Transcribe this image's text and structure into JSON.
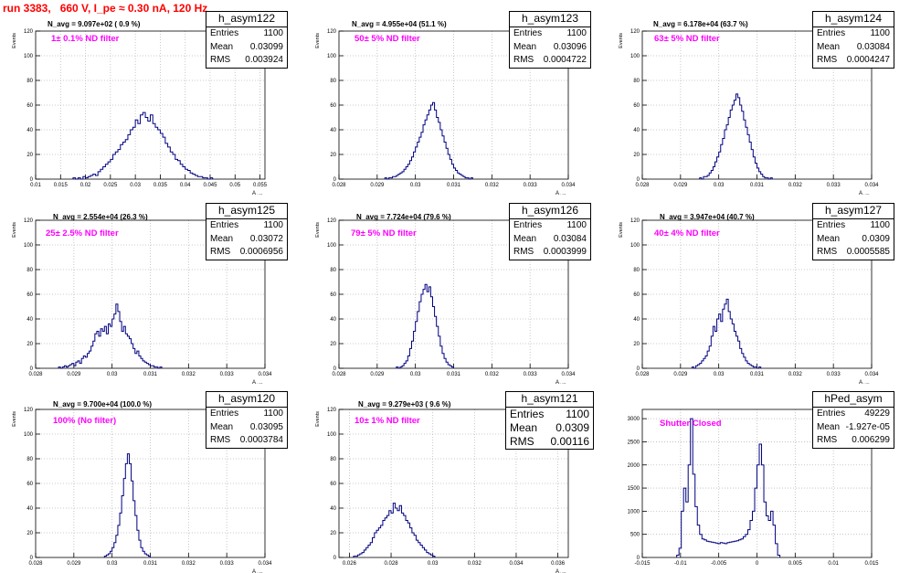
{
  "title": "run 3383,   660 V, I_pe ≈ 0.30 nA, 120 Hz",
  "colors": {
    "title": "#ff0000",
    "histogram": "#000080",
    "label": "#ff00ff",
    "grid": "#bbbbbb"
  },
  "panels": [
    {
      "name": "h_asym122",
      "navg": "N_avg = 9.097e+02 ( 0.9 %)",
      "filter": "1± 0.1% ND filter",
      "stats": {
        "entries_label": "Entries",
        "entries": "1100",
        "mean_label": "Mean",
        "mean": "0.03099",
        "rms_label": "RMS",
        "rms": "0.003924"
      }
    },
    {
      "name": "h_asym123",
      "navg": "N_avg = 4.955e+04 (51.1 %)",
      "filter": "50± 5% ND filter",
      "stats": {
        "entries_label": "Entries",
        "entries": "1100",
        "mean_label": "Mean",
        "mean": "0.03096",
        "rms_label": "RMS",
        "rms": "0.0004722"
      }
    },
    {
      "name": "h_asym124",
      "navg": "N_avg = 6.178e+04 (63.7 %)",
      "filter": "63± 5% ND filter",
      "stats": {
        "entries_label": "Entries",
        "entries": "1100",
        "mean_label": "Mean",
        "mean": "0.03084",
        "rms_label": "RMS",
        "rms": "0.0004247"
      }
    },
    {
      "name": "h_asym125",
      "navg": "N_avg = 2.554e+04 (26.3 %)",
      "filter": "25± 2.5% ND filter",
      "stats": {
        "entries_label": "Entries",
        "entries": "1100",
        "mean_label": "Mean",
        "mean": "0.03072",
        "rms_label": "RMS",
        "rms": "0.0006956"
      }
    },
    {
      "name": "h_asym126",
      "navg": "N_avg = 7.724e+04 (79.6 %)",
      "filter": "79± 5% ND filter",
      "stats": {
        "entries_label": "Entries",
        "entries": "1100",
        "mean_label": "Mean",
        "mean": "0.03084",
        "rms_label": "RMS",
        "rms": "0.0003999"
      }
    },
    {
      "name": "h_asym127",
      "navg": "N_avg = 3.947e+04 (40.7 %)",
      "filter": "40± 4% ND filter",
      "stats": {
        "entries_label": "Entries",
        "entries": "1100",
        "mean_label": "Mean",
        "mean": "0.0309",
        "rms_label": "RMS",
        "rms": "0.0005585"
      }
    },
    {
      "name": "h_asym120",
      "navg": "N_avg = 9.700e+04 (100.0 %)",
      "filter": "100% (No filter)",
      "stats": {
        "entries_label": "Entries",
        "entries": "1100",
        "mean_label": "Mean",
        "mean": "0.03095",
        "rms_label": "RMS",
        "rms": "0.0003784"
      }
    },
    {
      "name": "h_asym121",
      "navg": "N_avg = 9.279e+03 ( 9.6 %)",
      "filter": "10± 1% ND filter",
      "stats": {
        "entries_label": "Entries",
        "entries": "1100",
        "mean_label": "Mean",
        "mean": "0.0309",
        "rms_label": "RMS",
        "rms": "0.00116"
      }
    },
    {
      "name": "hPed_asym",
      "navg": "",
      "filter": "Shutter Closed",
      "stats": {
        "entries_label": "Entries",
        "entries": "49229",
        "mean_label": "Mean",
        "mean": "-1.927e-05",
        "rms_label": "RMS",
        "rms": "0.006299"
      }
    }
  ],
  "chart_data": [
    {
      "type": "histogram",
      "title": "h_asym122",
      "xlabel": "A_UID",
      "ylabel": "Events",
      "xlim": [
        0.01,
        0.056
      ],
      "ylim": [
        0,
        120
      ],
      "xticks": [
        "0.01",
        "0.015",
        "0.02",
        "0.025",
        "0.03",
        "0.035",
        "0.04",
        "0.045",
        "0.05",
        "0.055"
      ],
      "yticks": [
        "0",
        "20",
        "40",
        "60",
        "80",
        "100",
        "120"
      ],
      "grid": true,
      "bins": {
        "start": 0.0175,
        "width": 0.0005,
        "counts": [
          1,
          0,
          1,
          0,
          2,
          1,
          2,
          3,
          4,
          3,
          6,
          8,
          10,
          12,
          14,
          16,
          20,
          22,
          24,
          28,
          30,
          32,
          36,
          40,
          42,
          48,
          45,
          52,
          54,
          50,
          47,
          52,
          45,
          42,
          40,
          37,
          34,
          29,
          26,
          22,
          20,
          16,
          15,
          12,
          10,
          8,
          7,
          5,
          4,
          3,
          2,
          2,
          1,
          1,
          0,
          1
        ]
      }
    },
    {
      "type": "histogram",
      "title": "h_asym123",
      "xlabel": "A_UID",
      "ylabel": "Events",
      "xlim": [
        0.028,
        0.034
      ],
      "ylim": [
        0,
        120
      ],
      "xticks": [
        "0.028",
        "0.029",
        "0.03",
        "0.031",
        "0.032",
        "0.033",
        "0.034"
      ],
      "yticks": [
        "0",
        "20",
        "40",
        "60",
        "80",
        "100",
        "120"
      ],
      "grid": true,
      "bins": {
        "start": 0.0292,
        "width": 5e-05,
        "counts": [
          1,
          0,
          1,
          1,
          2,
          2,
          3,
          4,
          5,
          6,
          8,
          10,
          12,
          15,
          18,
          22,
          26,
          30,
          34,
          38,
          44,
          48,
          52,
          56,
          60,
          62,
          56,
          50,
          46,
          40,
          35,
          30,
          25,
          20,
          16,
          12,
          9,
          7,
          5,
          4,
          3,
          2,
          1,
          1,
          0,
          1
        ]
      }
    },
    {
      "type": "histogram",
      "title": "h_asym124",
      "xlabel": "A_UID",
      "ylabel": "Events",
      "xlim": [
        0.028,
        0.034
      ],
      "ylim": [
        0,
        120
      ],
      "xticks": [
        "0.028",
        "0.029",
        "0.03",
        "0.031",
        "0.032",
        "0.033",
        "0.034"
      ],
      "yticks": [
        "0",
        "20",
        "40",
        "60",
        "80",
        "100",
        "120"
      ],
      "grid": true,
      "bins": {
        "start": 0.0295,
        "width": 5e-05,
        "counts": [
          1,
          0,
          2,
          2,
          3,
          5,
          7,
          10,
          14,
          18,
          22,
          28,
          33,
          40,
          44,
          50,
          56,
          60,
          64,
          69,
          66,
          60,
          55,
          48,
          42,
          36,
          30,
          24,
          18,
          13,
          9,
          6,
          4,
          2,
          1,
          1,
          0,
          1
        ]
      }
    },
    {
      "type": "histogram",
      "title": "h_asym125",
      "xlabel": "A_UID",
      "ylabel": "Events",
      "xlim": [
        0.028,
        0.034
      ],
      "ylim": [
        0,
        120
      ],
      "xticks": [
        "0.028",
        "0.029",
        "0.03",
        "0.031",
        "0.032",
        "0.033",
        "0.034"
      ],
      "yticks": [
        "0",
        "20",
        "40",
        "60",
        "80",
        "100",
        "120"
      ],
      "grid": true,
      "bins": {
        "start": 0.0286,
        "width": 5e-05,
        "counts": [
          1,
          0,
          1,
          2,
          1,
          2,
          3,
          4,
          2,
          5,
          6,
          4,
          8,
          10,
          9,
          12,
          14,
          18,
          22,
          28,
          30,
          26,
          32,
          30,
          34,
          28,
          36,
          34,
          40,
          44,
          52,
          46,
          38,
          30,
          34,
          28,
          26,
          24,
          20,
          16,
          12,
          14,
          10,
          8,
          6,
          5,
          4,
          3,
          2,
          2,
          1,
          1,
          0,
          1
        ]
      }
    },
    {
      "type": "histogram",
      "title": "h_asym126",
      "xlabel": "A_UID",
      "ylabel": "Events",
      "xlim": [
        0.028,
        0.034
      ],
      "ylim": [
        0,
        120
      ],
      "xticks": [
        "0.028",
        "0.029",
        "0.03",
        "0.031",
        "0.032",
        "0.033",
        "0.034"
      ],
      "yticks": [
        "0",
        "20",
        "40",
        "60",
        "80",
        "100",
        "120"
      ],
      "grid": true,
      "bins": {
        "start": 0.0295,
        "width": 5e-05,
        "counts": [
          1,
          0,
          1,
          2,
          4,
          6,
          10,
          16,
          22,
          30,
          38,
          46,
          54,
          60,
          64,
          68,
          62,
          66,
          58,
          50,
          42,
          34,
          26,
          18,
          12,
          8,
          5,
          3,
          2,
          1
        ]
      }
    },
    {
      "type": "histogram",
      "title": "h_asym127",
      "xlabel": "A_UID",
      "ylabel": "Events",
      "xlim": [
        0.028,
        0.034
      ],
      "ylim": [
        0,
        120
      ],
      "xticks": [
        "0.028",
        "0.029",
        "0.03",
        "0.031",
        "0.032",
        "0.033",
        "0.034"
      ],
      "yticks": [
        "0",
        "20",
        "40",
        "60",
        "80",
        "100",
        "120"
      ],
      "grid": true,
      "bins": {
        "start": 0.0293,
        "width": 5e-05,
        "counts": [
          1,
          0,
          2,
          3,
          4,
          6,
          8,
          10,
          14,
          18,
          26,
          34,
          30,
          40,
          44,
          38,
          48,
          52,
          56,
          46,
          40,
          36,
          30,
          26,
          22,
          16,
          12,
          9,
          6,
          4,
          3,
          2,
          1,
          1,
          0,
          1
        ]
      }
    },
    {
      "type": "histogram",
      "title": "h_asym120",
      "xlabel": "A_UID",
      "ylabel": "Events",
      "xlim": [
        0.028,
        0.034
      ],
      "ylim": [
        0,
        120
      ],
      "xticks": [
        "0.028",
        "0.029",
        "0.03",
        "0.031",
        "0.032",
        "0.033",
        "0.034"
      ],
      "yticks": [
        "0",
        "20",
        "40",
        "60",
        "80",
        "100",
        "120"
      ],
      "grid": true,
      "bins": {
        "start": 0.0298,
        "width": 5e-05,
        "counts": [
          1,
          2,
          3,
          5,
          8,
          12,
          18,
          26,
          36,
          50,
          64,
          76,
          84,
          76,
          62,
          46,
          34,
          22,
          14,
          8,
          5,
          3,
          2,
          1
        ]
      }
    },
    {
      "type": "histogram",
      "title": "h_asym121",
      "xlabel": "A_UID",
      "ylabel": "Events",
      "xlim": [
        0.0255,
        0.0365
      ],
      "ylim": [
        0,
        120
      ],
      "xticks": [
        "0.026",
        "0.028",
        "0.03",
        "0.032",
        "0.034",
        "0.036"
      ],
      "yticks": [
        "0",
        "20",
        "40",
        "60",
        "80",
        "100",
        "120"
      ],
      "grid": true,
      "bins": {
        "start": 0.0262,
        "width": 0.0001,
        "counts": [
          1,
          1,
          2,
          3,
          4,
          6,
          8,
          10,
          12,
          16,
          20,
          22,
          24,
          26,
          30,
          32,
          34,
          38,
          36,
          44,
          40,
          38,
          42,
          36,
          34,
          30,
          28,
          24,
          20,
          18,
          14,
          12,
          10,
          8,
          6,
          4,
          3,
          2,
          1
        ]
      }
    },
    {
      "type": "histogram",
      "title": "hPed_asym",
      "xlabel": "",
      "ylabel": "",
      "xlim": [
        -0.015,
        0.015
      ],
      "ylim": [
        0,
        3200
      ],
      "xticks": [
        "-0.015",
        "-0.01",
        "-0.005",
        "0",
        "0.005",
        "0.01",
        "0.015"
      ],
      "yticks": [
        "0",
        "500",
        "1000",
        "1500",
        "2000",
        "2500",
        "3000"
      ],
      "grid": true,
      "bins": {
        "start": -0.0105,
        "width": 0.0003,
        "counts": [
          50,
          200,
          1000,
          1500,
          1200,
          2000,
          3000,
          1800,
          1100,
          700,
          500,
          400,
          380,
          350,
          340,
          330,
          320,
          310,
          300,
          320,
          310,
          300,
          320,
          330,
          340,
          350,
          360,
          380,
          400,
          450,
          500,
          600,
          800,
          1000,
          1500,
          2000,
          2450,
          2000,
          1200,
          900,
          800,
          1000,
          700,
          300,
          50
        ]
      }
    }
  ]
}
